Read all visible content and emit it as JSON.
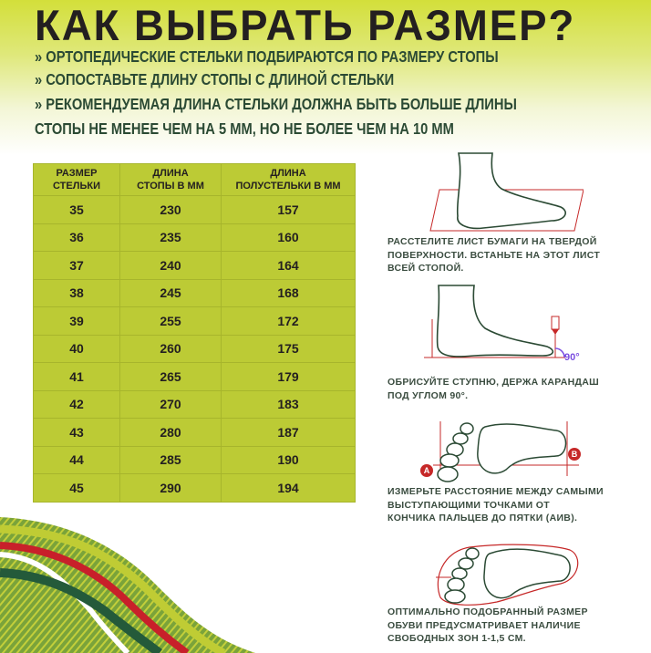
{
  "title": "КАК ВЫБРАТЬ РАЗМЕР?",
  "bullets": [
    "» ОРТОПЕДИЧЕСКИЕ СТЕЛЬКИ ПОДБИРАЮТСЯ ПО РАЗМЕРУ СТОПЫ",
    "» СОПОСТАВЬТЕ ДЛИНУ СТОПЫ С ДЛИНОЙ СТЕЛЬКИ",
    "» РЕКОМЕНДУЕМАЯ ДЛИНА СТЕЛЬКИ ДОЛЖНА БЫТЬ БОЛЬШЕ ДЛИНЫ",
    "СТОПЫ НЕ МЕНЕЕ ЧЕМ НА 5 ММ, НО НЕ БОЛЕЕ ЧЕМ НА 10 ММ"
  ],
  "table": {
    "headers": [
      [
        "РАЗМЕР",
        "СТЕЛЬКИ"
      ],
      [
        "ДЛИНА",
        "СТОПЫ В ММ"
      ],
      [
        "ДЛИНА",
        "ПОЛУСТЕЛЬКИ В ММ"
      ]
    ],
    "rows": [
      [
        "35",
        "230",
        "157"
      ],
      [
        "36",
        "235",
        "160"
      ],
      [
        "37",
        "240",
        "164"
      ],
      [
        "38",
        "245",
        "168"
      ],
      [
        "39",
        "255",
        "172"
      ],
      [
        "40",
        "260",
        "175"
      ],
      [
        "41",
        "265",
        "179"
      ],
      [
        "42",
        "270",
        "183"
      ],
      [
        "43",
        "280",
        "187"
      ],
      [
        "44",
        "285",
        "190"
      ],
      [
        "45",
        "290",
        "194"
      ]
    ]
  },
  "steps": [
    {
      "lines": [
        "РАССТЕЛИТЕ ЛИСТ БУМАГИ НА ТВЕРДОЙ",
        "ПОВЕРХНОСТИ. ВСТАНЬТЕ НА ЭТОТ ЛИСТ",
        "ВСЕЙ СТОПОЙ."
      ]
    },
    {
      "lines": [
        "ОБРИСУЙТЕ СТУПНЮ, ДЕРЖА КАРАНДАШ",
        "ПОД УГЛОМ 90°."
      ],
      "angle_label": "90°"
    },
    {
      "lines": [
        "ИЗМЕРЬТЕ РАССТОЯНИЕ МЕЖДУ САМЫМИ",
        "ВЫСТУПАЮЩИМИ ТОЧКАМИ ОТ",
        "КОНЧИКА ПАЛЬЦЕВ ДО ПЯТКИ (АИВ)."
      ],
      "point_a": "A",
      "point_b": "B"
    },
    {
      "lines": [
        "ОПТИМАЛЬНО ПОДОБРАННЫЙ РАЗМЕР",
        "ОБУВИ ПРЕДУСМАТРИВАЕТ НАЛИЧИЕ",
        "СВОБОДНЫХ ЗОН 1-1,5 СМ."
      ]
    }
  ],
  "colors": {
    "table_bg": "#bccb35",
    "text_green": "#2b4a34",
    "accent_red": "#c62828",
    "angle_purple": "#7b4ee0"
  }
}
